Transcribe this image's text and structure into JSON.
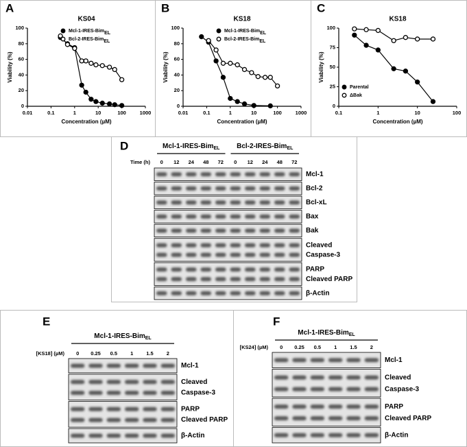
{
  "chart_data": [
    {
      "type": "scatter",
      "panel": "A",
      "title": "KS04",
      "xlabel": "Concentration (µM)",
      "ylabel": "Viability (%)",
      "log_x": true,
      "xlim": [
        0.01,
        1000
      ],
      "xticks": [
        0.01,
        0.1,
        1,
        10,
        100,
        1000
      ],
      "ylim": [
        0,
        100
      ],
      "yticks": [
        0,
        20,
        40,
        60,
        80,
        100
      ],
      "legend": "upper right",
      "series": [
        {
          "name": "Mcl-1-IRES-Bim",
          "subscript": "EL",
          "color": "#000000",
          "filled": true,
          "x": [
            0.25,
            0.5,
            1,
            2,
            3,
            5,
            8,
            15,
            30,
            50,
            100
          ],
          "values": [
            88,
            80,
            75,
            27,
            18,
            9,
            6,
            4,
            3,
            2,
            1
          ]
        },
        {
          "name": "Bcl-2-IRES-Bim",
          "subscript": "EL",
          "color": "#000000",
          "filled": false,
          "x": [
            0.25,
            0.5,
            1,
            2,
            3,
            5,
            8,
            15,
            30,
            50,
            100
          ],
          "values": [
            90,
            79,
            74,
            58,
            58,
            55,
            53,
            52,
            50,
            47,
            34
          ]
        }
      ]
    },
    {
      "type": "scatter",
      "panel": "B",
      "title": "KS18",
      "xlabel": "Concentration (µM)",
      "ylabel": "Viability (%)",
      "log_x": true,
      "xlim": [
        0.01,
        1000
      ],
      "xticks": [
        0.01,
        0.1,
        1,
        10,
        100,
        1000
      ],
      "ylim": [
        0,
        100
      ],
      "yticks": [
        0,
        20,
        40,
        60,
        80,
        100
      ],
      "legend": "upper right",
      "series": [
        {
          "name": "Mcl-1-IRES-Bim",
          "subscript": "EL",
          "color": "#000000",
          "filled": true,
          "x": [
            0.06,
            0.12,
            0.25,
            0.5,
            1,
            2,
            4,
            10,
            50
          ],
          "values": [
            89,
            82,
            58,
            37,
            10,
            6,
            3,
            1,
            0.5
          ]
        },
        {
          "name": "Bcl-2-IRES-Bim",
          "subscript": "EL",
          "color": "#000000",
          "filled": false,
          "x": [
            0.12,
            0.25,
            0.5,
            1,
            2,
            4,
            8,
            15,
            30,
            50,
            100
          ],
          "values": [
            84,
            72,
            55,
            55,
            53,
            47,
            43,
            38,
            37,
            37,
            26
          ]
        }
      ]
    },
    {
      "type": "scatter",
      "panel": "C",
      "title": "KS18",
      "xlabel": "Concentration (µM)",
      "ylabel": "Viability (%)",
      "log_x": true,
      "xlim": [
        0.1,
        100
      ],
      "xticks": [
        0.1,
        1,
        10,
        100
      ],
      "ylim": [
        0,
        100
      ],
      "yticks": [
        0,
        25,
        50,
        75,
        100
      ],
      "legend": "lower left",
      "series": [
        {
          "name": "Parental",
          "color": "#000000",
          "filled": true,
          "x": [
            0.25,
            0.5,
            1,
            2.5,
            5,
            10,
            25
          ],
          "values": [
            91,
            78,
            72,
            48,
            45,
            31,
            6
          ]
        },
        {
          "name": "ΔBak",
          "color": "#000000",
          "filled": false,
          "x": [
            0.25,
            0.5,
            1,
            2.5,
            5,
            10,
            25
          ],
          "values": [
            99,
            98,
            97,
            84,
            88,
            86,
            86
          ]
        }
      ]
    }
  ],
  "blots": [
    {
      "panel": "D",
      "groups": [
        {
          "name": "Mcl-1-IRES-Bim",
          "subscript": "EL"
        },
        {
          "name": "Bcl-2-IRES-Bim",
          "subscript": "EL"
        }
      ],
      "lane_title": "Time (h)",
      "lanes": [
        0,
        12,
        24,
        48,
        72,
        0,
        12,
        24,
        48,
        72
      ],
      "rows": [
        [
          "Mcl-1"
        ],
        [
          "Bcl-2"
        ],
        [
          "Bcl-xL"
        ],
        [
          "Bax"
        ],
        [
          "Bak"
        ],
        [
          "Cleaved",
          "Caspase-3"
        ],
        [
          "PARP",
          "Cleaved PARP"
        ],
        [
          "β-Actin"
        ]
      ]
    },
    {
      "panel": "E",
      "groups": [
        {
          "name": "Mcl-1-IRES-Bim",
          "subscript": "EL"
        }
      ],
      "lane_title": "[KS18] (µM)",
      "lanes": [
        0,
        0.25,
        0.5,
        1,
        1.5,
        2
      ],
      "rows": [
        [
          "Mcl-1"
        ],
        [
          "Cleaved",
          "Caspase-3"
        ],
        [
          "PARP",
          "Cleaved PARP"
        ],
        [
          "β-Actin"
        ]
      ]
    },
    {
      "panel": "F",
      "groups": [
        {
          "name": "Mcl-1-IRES-Bim",
          "subscript": "EL"
        }
      ],
      "lane_title": "[KS24] (µM)",
      "lanes": [
        0,
        0.25,
        0.5,
        1,
        1.5,
        2
      ],
      "rows": [
        [
          "Mcl-1"
        ],
        [
          "Cleaved",
          "Caspase-3"
        ],
        [
          "PARP",
          "Cleaved PARP"
        ],
        [
          "β-Actin"
        ]
      ]
    }
  ]
}
